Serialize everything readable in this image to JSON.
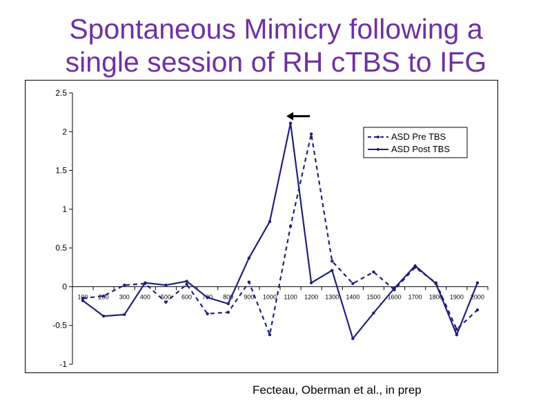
{
  "slide": {
    "title_line1": "Spontaneous Mimicry following a",
    "title_line2": "single session of RH cTBS to IFG",
    "credit": "Fecteau, Oberman et al., in prep"
  },
  "chart_data": {
    "type": "line",
    "title": "",
    "xlabel": "",
    "ylabel": "",
    "x": [
      100,
      200,
      300,
      400,
      500,
      600,
      700,
      800,
      900,
      1000,
      1100,
      1200,
      1300,
      1400,
      1500,
      1600,
      1700,
      1800,
      1900,
      2000
    ],
    "ylim": [
      -1,
      2.5
    ],
    "yticks": [
      -1,
      -0.5,
      0,
      0.5,
      1,
      1.5,
      2,
      2.5
    ],
    "ytick_labels": [
      "-1",
      "-0.5",
      "0",
      "0.5",
      "1",
      "1.5",
      "2",
      "2.5"
    ],
    "grid": false,
    "legend_position": "top-right",
    "series": [
      {
        "name": "ASD Pre TBS",
        "style": "dashed",
        "color": "#1f1f7a",
        "values": [
          -0.15,
          -0.12,
          0.02,
          0.04,
          -0.2,
          0.03,
          -0.35,
          -0.33,
          0.06,
          -0.62,
          0.78,
          1.97,
          0.33,
          0.04,
          0.19,
          -0.04,
          0.25,
          0.05,
          -0.55,
          -0.3
        ]
      },
      {
        "name": "ASD Post TBS",
        "style": "solid",
        "color": "#1f1f7a",
        "values": [
          -0.18,
          -0.38,
          -0.36,
          0.05,
          0.02,
          0.07,
          -0.14,
          -0.22,
          0.37,
          0.84,
          2.11,
          0.05,
          0.21,
          -0.67,
          -0.34,
          -0.02,
          0.27,
          0.04,
          -0.62,
          0.05
        ]
      }
    ],
    "annotation": {
      "type": "arrow",
      "direction": "left",
      "near_x": 1100,
      "near_y": 2.2
    }
  }
}
